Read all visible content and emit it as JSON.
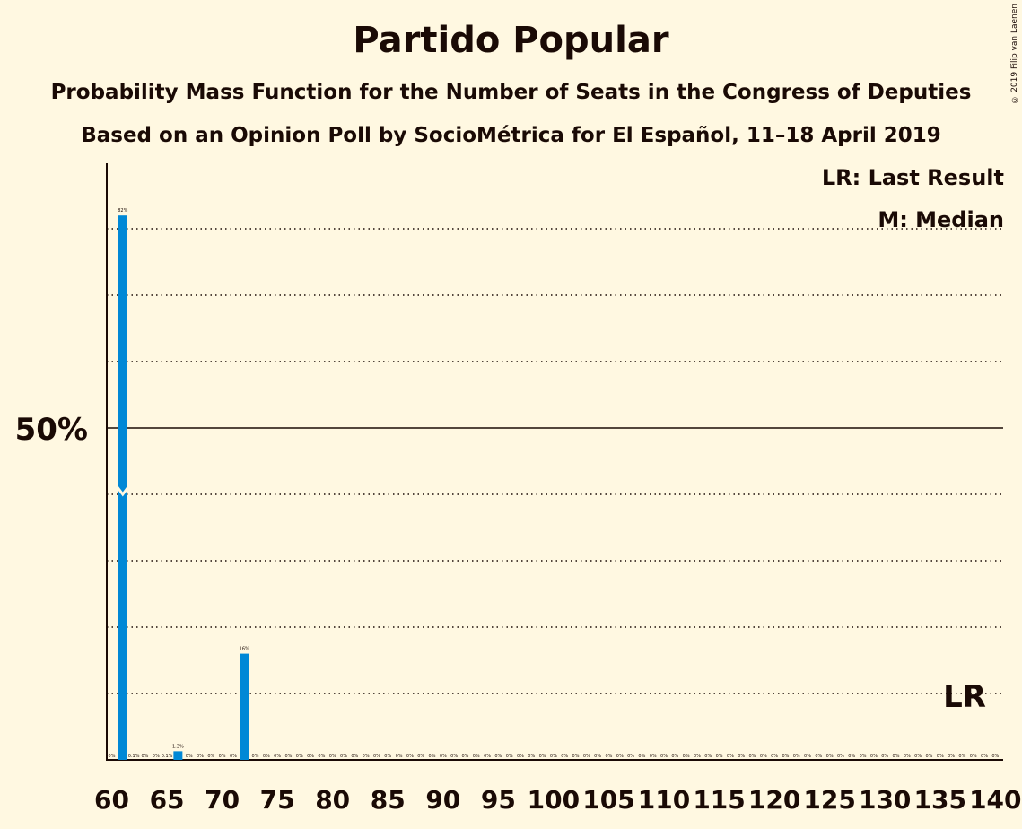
{
  "title": "Partido Popular",
  "subtitle1": "Probability Mass Function for the Number of Seats in the Congress of Deputies",
  "subtitle2": "Based on an Opinion Poll by SocioMétrica for El Español, 11–18 April 2019",
  "copyright": "© 2019 Filip van Laenen",
  "legend": {
    "last_result": "LR: Last Result",
    "median": "M: Median"
  },
  "lr_label": "LR",
  "colors": {
    "bar": "#0088d6",
    "background": "#fff8e1",
    "text": "#1a0a05"
  },
  "chart_data": {
    "type": "bar",
    "xlim": [
      60,
      140
    ],
    "ylim": [
      0,
      90
    ],
    "x_ticks": [
      60,
      65,
      70,
      75,
      80,
      85,
      90,
      95,
      100,
      105,
      110,
      115,
      120,
      125,
      130,
      135,
      140
    ],
    "y_tick_label": {
      "value": 50,
      "label": "50%"
    },
    "gridlines_dotted": [
      10,
      20,
      30,
      40,
      60,
      70,
      80
    ],
    "median_seat": 61,
    "median_marker_value": 40,
    "last_result_seat": 137,
    "x": [
      60,
      61,
      62,
      63,
      64,
      65,
      66,
      67,
      68,
      69,
      70,
      71,
      72,
      73,
      74,
      75,
      76,
      77,
      78,
      79,
      80,
      81,
      82,
      83,
      84,
      85,
      86,
      87,
      88,
      89,
      90,
      91,
      92,
      93,
      94,
      95,
      96,
      97,
      98,
      99,
      100,
      101,
      102,
      103,
      104,
      105,
      106,
      107,
      108,
      109,
      110,
      111,
      112,
      113,
      114,
      115,
      116,
      117,
      118,
      119,
      120,
      121,
      122,
      123,
      124,
      125,
      126,
      127,
      128,
      129,
      130,
      131,
      132,
      133,
      134,
      135,
      136,
      137,
      138,
      139,
      140
    ],
    "values": [
      0,
      82,
      0.1,
      0,
      0,
      0.1,
      1.3,
      0,
      0,
      0,
      0,
      0,
      16,
      0,
      0,
      0,
      0,
      0,
      0,
      0,
      0,
      0,
      0,
      0,
      0,
      0,
      0,
      0,
      0,
      0,
      0,
      0,
      0,
      0,
      0,
      0,
      0,
      0,
      0,
      0,
      0,
      0,
      0,
      0,
      0,
      0,
      0,
      0,
      0,
      0,
      0,
      0,
      0,
      0,
      0,
      0,
      0,
      0,
      0,
      0,
      0,
      0,
      0,
      0,
      0,
      0,
      0,
      0,
      0,
      0,
      0,
      0,
      0,
      0,
      0,
      0,
      0,
      0,
      0,
      0,
      0
    ],
    "labels": [
      "0%",
      "82%",
      "0.1%",
      "0%",
      "0%",
      "0.1%",
      "1.3%",
      "0%",
      "0%",
      "0%",
      "0%",
      "0%",
      "16%",
      "0%",
      "0%",
      "0%",
      "0%",
      "0%",
      "0%",
      "0%",
      "0%",
      "0%",
      "0%",
      "0%",
      "0%",
      "0%",
      "0%",
      "0%",
      "0%",
      "0%",
      "0%",
      "0%",
      "0%",
      "0%",
      "0%",
      "0%",
      "0%",
      "0%",
      "0%",
      "0%",
      "0%",
      "0%",
      "0%",
      "0%",
      "0%",
      "0%",
      "0%",
      "0%",
      "0%",
      "0%",
      "0%",
      "0%",
      "0%",
      "0%",
      "0%",
      "0%",
      "0%",
      "0%",
      "0%",
      "0%",
      "0%",
      "0%",
      "0%",
      "0%",
      "0%",
      "0%",
      "0%",
      "0%",
      "0%",
      "0%",
      "0%",
      "0%",
      "0%",
      "0%",
      "0%",
      "0%",
      "0%",
      "0%",
      "0%",
      "0%",
      "0%"
    ]
  }
}
